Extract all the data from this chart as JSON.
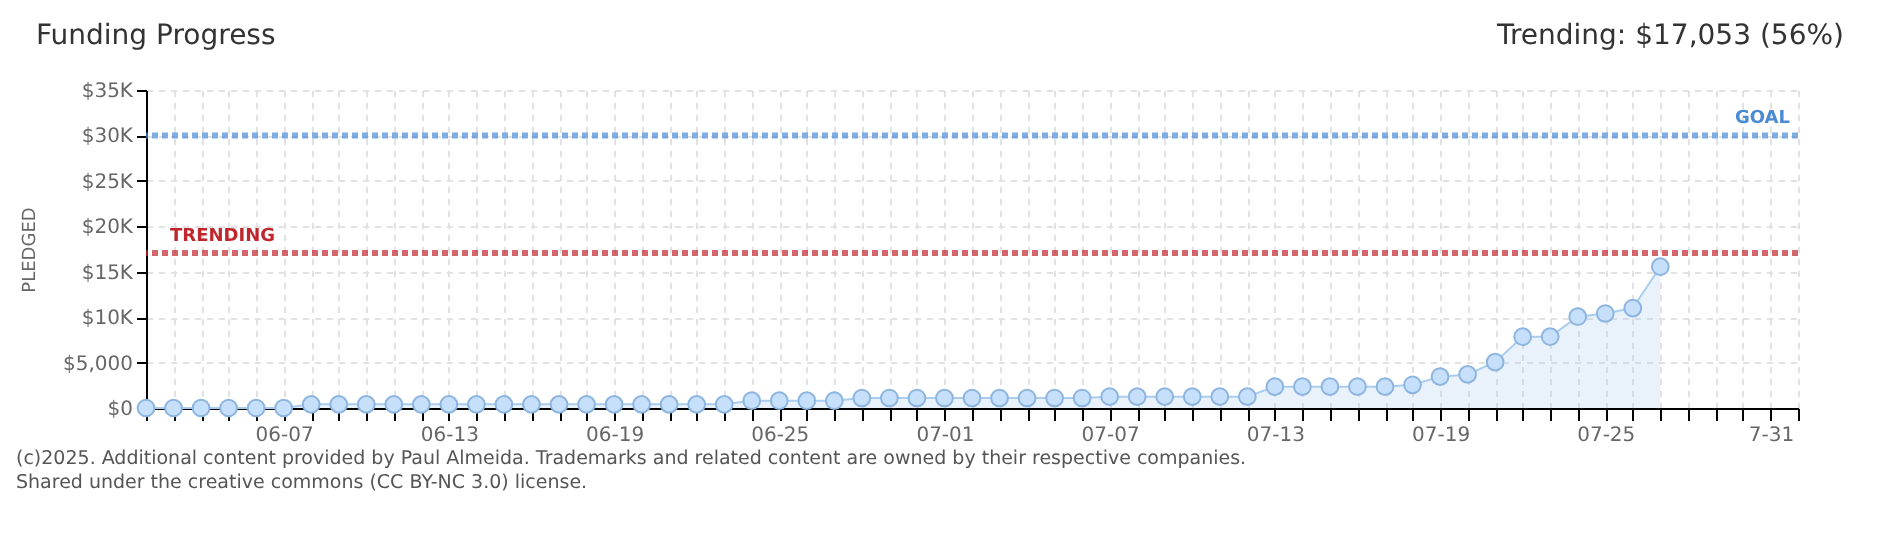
{
  "chart_data": {
    "type": "area",
    "title": "Funding Progress",
    "subtitle": "Trending: $17,053 (56%)",
    "ylabel": "PLEDGED",
    "annotations": [
      "(c)2025. Additional content provided by Paul Almeida. Trademarks and related content are owned by their respective companies.",
      "Shared under the creative commons (CC BY-NC 3.0) license."
    ],
    "x": [
      "2025-06-02",
      "2025-06-03",
      "2025-06-04",
      "2025-06-05",
      "2025-06-06",
      "2025-06-07",
      "2025-06-08",
      "2025-06-09",
      "2025-06-10",
      "2025-06-11",
      "2025-06-12",
      "2025-06-13",
      "2025-06-14",
      "2025-06-15",
      "2025-06-16",
      "2025-06-17",
      "2025-06-18",
      "2025-06-19",
      "2025-06-20",
      "2025-06-21",
      "2025-06-22",
      "2025-06-23",
      "2025-06-24",
      "2025-06-25",
      "2025-06-26",
      "2025-06-27",
      "2025-06-28",
      "2025-06-29",
      "2025-06-30",
      "2025-07-01",
      "2025-07-02",
      "2025-07-03",
      "2025-07-04",
      "2025-07-05",
      "2025-07-06",
      "2025-07-07",
      "2025-07-08",
      "2025-07-09",
      "2025-07-10",
      "2025-07-11",
      "2025-07-12",
      "2025-07-13",
      "2025-07-14",
      "2025-07-15",
      "2025-07-16",
      "2025-07-17",
      "2025-07-18",
      "2025-07-19",
      "2025-07-20",
      "2025-07-21",
      "2025-07-22",
      "2025-07-23",
      "2025-07-24",
      "2025-07-25",
      "2025-07-26",
      "2025-07-27"
    ],
    "values": [
      0,
      0,
      0,
      0,
      0,
      0,
      400,
      400,
      400,
      400,
      400,
      400,
      400,
      400,
      400,
      400,
      400,
      400,
      400,
      400,
      400,
      400,
      800,
      800,
      800,
      800,
      1100,
      1100,
      1100,
      1100,
      1100,
      1100,
      1100,
      1100,
      1100,
      1250,
      1250,
      1250,
      1250,
      1250,
      1250,
      2350,
      2350,
      2350,
      2350,
      2350,
      2550,
      3450,
      3700,
      5050,
      7850,
      7850,
      10050,
      10400,
      11000,
      15550
    ],
    "color": "#a9cdf0",
    "xlim": [
      "2025-06-02",
      "2025-08-01"
    ],
    "xticks": [
      {
        "value": "2025-06-02",
        "label": null
      },
      {
        "value": "2025-06-03",
        "label": null
      },
      {
        "value": "2025-06-04",
        "label": null
      },
      {
        "value": "2025-06-05",
        "label": null
      },
      {
        "value": "2025-06-06",
        "label": null
      },
      {
        "value": "2025-06-07",
        "label": "06-07"
      },
      {
        "value": "2025-06-08",
        "label": null
      },
      {
        "value": "2025-06-09",
        "label": null
      },
      {
        "value": "2025-06-10",
        "label": null
      },
      {
        "value": "2025-06-11",
        "label": null
      },
      {
        "value": "2025-06-12",
        "label": null
      },
      {
        "value": "2025-06-13",
        "label": "06-13"
      },
      {
        "value": "2025-06-14",
        "label": null
      },
      {
        "value": "2025-06-15",
        "label": null
      },
      {
        "value": "2025-06-16",
        "label": null
      },
      {
        "value": "2025-06-17",
        "label": null
      },
      {
        "value": "2025-06-18",
        "label": null
      },
      {
        "value": "2025-06-19",
        "label": "06-19"
      },
      {
        "value": "2025-06-20",
        "label": null
      },
      {
        "value": "2025-06-21",
        "label": null
      },
      {
        "value": "2025-06-22",
        "label": null
      },
      {
        "value": "2025-06-23",
        "label": null
      },
      {
        "value": "2025-06-24",
        "label": null
      },
      {
        "value": "2025-06-25",
        "label": "06-25"
      },
      {
        "value": "2025-06-26",
        "label": null
      },
      {
        "value": "2025-06-27",
        "label": null
      },
      {
        "value": "2025-06-28",
        "label": null
      },
      {
        "value": "2025-06-29",
        "label": null
      },
      {
        "value": "2025-06-30",
        "label": null
      },
      {
        "value": "2025-07-01",
        "label": "07-01"
      },
      {
        "value": "2025-07-02",
        "label": null
      },
      {
        "value": "2025-07-03",
        "label": null
      },
      {
        "value": "2025-07-04",
        "label": null
      },
      {
        "value": "2025-07-05",
        "label": null
      },
      {
        "value": "2025-07-06",
        "label": null
      },
      {
        "value": "2025-07-07",
        "label": "07-07"
      },
      {
        "value": "2025-07-08",
        "label": null
      },
      {
        "value": "2025-07-09",
        "label": null
      },
      {
        "value": "2025-07-10",
        "label": null
      },
      {
        "value": "2025-07-11",
        "label": null
      },
      {
        "value": "2025-07-12",
        "label": null
      },
      {
        "value": "2025-07-13",
        "label": "07-13"
      },
      {
        "value": "2025-07-14",
        "label": null
      },
      {
        "value": "2025-07-15",
        "label": null
      },
      {
        "value": "2025-07-16",
        "label": null
      },
      {
        "value": "2025-07-17",
        "label": null
      },
      {
        "value": "2025-07-18",
        "label": null
      },
      {
        "value": "2025-07-19",
        "label": "07-19"
      },
      {
        "value": "2025-07-20",
        "label": null
      },
      {
        "value": "2025-07-21",
        "label": null
      },
      {
        "value": "2025-07-22",
        "label": null
      },
      {
        "value": "2025-07-23",
        "label": null
      },
      {
        "value": "2025-07-24",
        "label": null
      },
      {
        "value": "2025-07-25",
        "label": "07-25"
      },
      {
        "value": "2025-07-26",
        "label": null
      },
      {
        "value": "2025-07-27",
        "label": null
      },
      {
        "value": "2025-07-28",
        "label": null
      },
      {
        "value": "2025-07-29",
        "label": null
      },
      {
        "value": "2025-07-30",
        "label": null
      },
      {
        "value": "2025-07-31",
        "label": "7-31"
      },
      {
        "value": "2025-08-01",
        "label": null
      }
    ],
    "ylim": [
      0,
      35000
    ],
    "yticks": [
      {
        "value": 0,
        "label": "$0"
      },
      {
        "value": 5000,
        "label": "$5,000"
      },
      {
        "value": 10000,
        "label": "$10K"
      },
      {
        "value": 15000,
        "label": "$15K"
      },
      {
        "value": 20000,
        "label": "$20K"
      },
      {
        "value": 25000,
        "label": "$25K"
      },
      {
        "value": 30000,
        "label": "$30K"
      },
      {
        "value": 35000,
        "label": "$35K"
      }
    ],
    "ref_lines": [
      {
        "axis": "y",
        "value": 30000,
        "label": "GOAL",
        "color": "#4a8bd6",
        "line_style": "dotted"
      },
      {
        "axis": "y",
        "value": 17053,
        "label": "TRENDING",
        "color": "#c0272d",
        "line_style": "dotted"
      }
    ],
    "grid": true,
    "marker": "circle"
  }
}
